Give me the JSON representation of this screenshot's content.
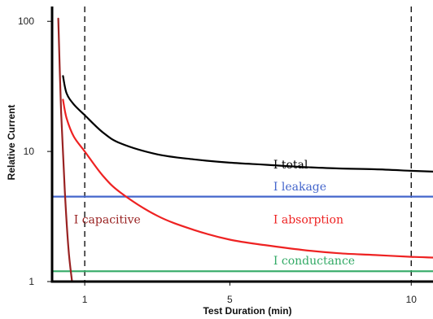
{
  "chart_data": {
    "type": "line",
    "title": "",
    "xlabel": "Test Duration (min)",
    "ylabel": "Relative Current",
    "x_scale": "linear",
    "y_scale": "log",
    "xlim": [
      0.1,
      10.6
    ],
    "ylim": [
      1,
      130
    ],
    "x_ticks": [
      {
        "value": 1,
        "label": "1"
      },
      {
        "value": 5,
        "label": "5"
      },
      {
        "value": 10,
        "label": "10"
      }
    ],
    "y_ticks": [
      {
        "value": 100,
        "label": "100"
      },
      {
        "value": 10,
        "label": "10"
      },
      {
        "value": 1,
        "label": "1"
      }
    ],
    "reference_lines_x": [
      1,
      10
    ],
    "grid": false,
    "series": [
      {
        "name": "I total",
        "color": "#000000",
        "x": [
          0.4,
          0.5,
          0.7,
          1,
          1.5,
          2,
          3,
          4,
          5,
          6,
          7,
          8,
          9,
          10,
          10.6
        ],
        "y": [
          38,
          28,
          23,
          19,
          14,
          11.5,
          9.5,
          8.7,
          8.2,
          7.9,
          7.6,
          7.4,
          7.3,
          7.1,
          7.0
        ]
      },
      {
        "name": "I leakage",
        "color": "#4466cc",
        "x": [
          0.1,
          10.6
        ],
        "y": [
          4.5,
          4.5
        ]
      },
      {
        "name": "I absorption",
        "color": "#ee2222",
        "x": [
          0.4,
          0.5,
          0.7,
          1,
          1.5,
          2,
          3,
          4,
          5,
          6,
          7,
          8,
          9,
          10,
          10.6
        ],
        "y": [
          25,
          18,
          13,
          10,
          6.5,
          4.8,
          3.2,
          2.5,
          2.1,
          1.9,
          1.75,
          1.65,
          1.6,
          1.55,
          1.53
        ]
      },
      {
        "name": "I conductance",
        "color": "#33aa66",
        "x": [
          0.1,
          10.6
        ],
        "y": [
          1.2,
          1.2
        ]
      },
      {
        "name": "I capacitive",
        "color": "#992222",
        "x": [
          0.27,
          0.35,
          0.45,
          0.55,
          0.65
        ],
        "y": [
          105,
          20,
          5,
          1.8,
          1
        ]
      }
    ],
    "annotations": [
      {
        "text": "I total",
        "x": 6.2,
        "y": 7.4,
        "color": "#000000"
      },
      {
        "text": "I leakage",
        "x": 6.2,
        "y": 5.0,
        "color": "#4466cc"
      },
      {
        "text": "I capacitive",
        "x": 0.7,
        "y": 2.8,
        "color": "#992222"
      },
      {
        "text": "I absorption",
        "x": 6.2,
        "y": 2.8,
        "color": "#ee2222"
      },
      {
        "text": "I conductance",
        "x": 6.2,
        "y": 1.35,
        "color": "#33aa66"
      }
    ]
  }
}
